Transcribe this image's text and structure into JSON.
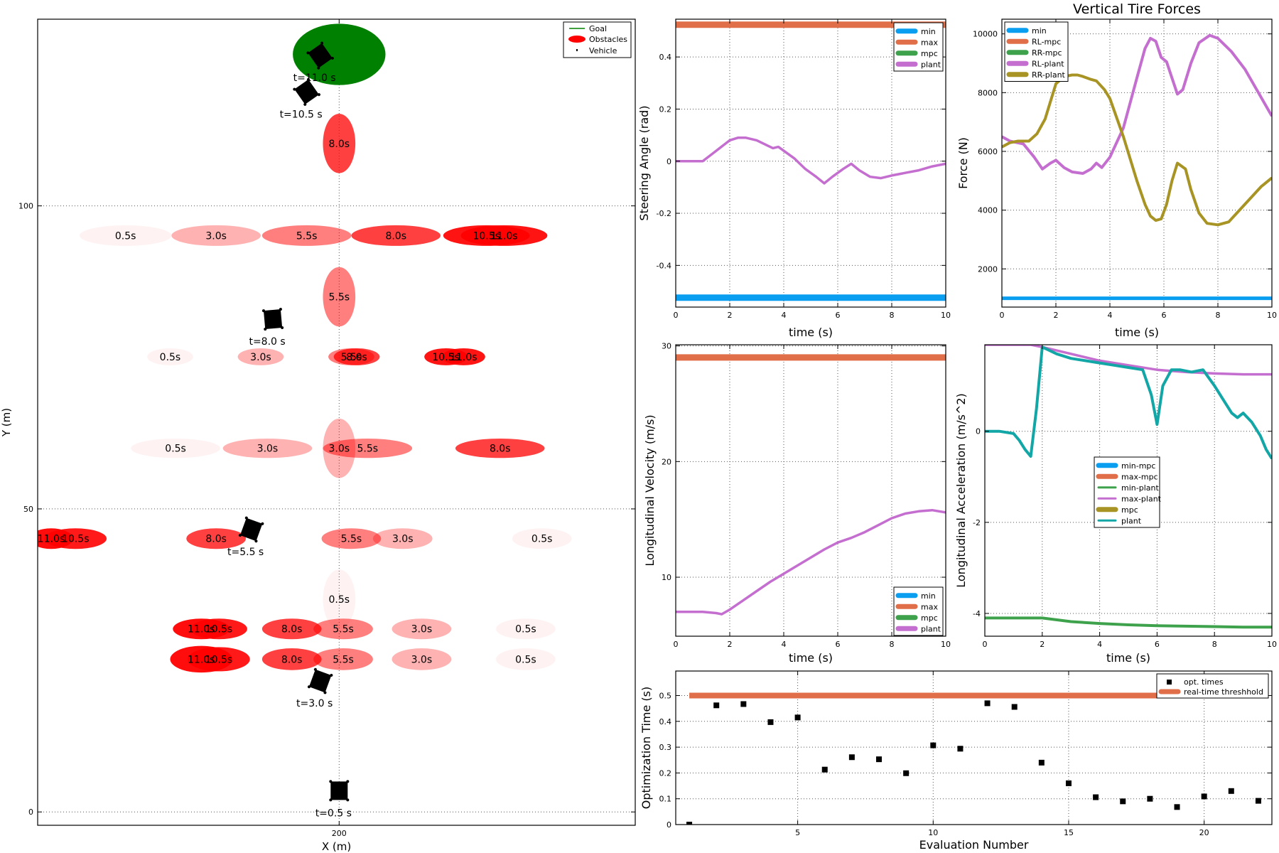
{
  "chart_data": [
    {
      "type": "scatter",
      "xlabel": "X (m)",
      "ylabel": "Y (m)",
      "xlim": [
        177.7,
        221.9
      ],
      "ylim": [
        -2.2,
        130.8
      ],
      "xticks": [
        200
      ],
      "yticks": [
        0,
        50,
        100
      ],
      "grid": true,
      "legend": {
        "placement": "top-right",
        "entries": [
          "Goal",
          "Obstacles",
          "Vehicle"
        ]
      },
      "goal": {
        "x": 200,
        "y": 125,
        "rx": 3.4,
        "ry": 5
      },
      "obstacle_ellipses": [
        {
          "label": "8.0s",
          "x": 200,
          "y": 110.3,
          "rx": 1.2,
          "ry": 4.9,
          "alpha": 0.75
        },
        {
          "label": "0.5s",
          "x": 184.2,
          "y": 95.1,
          "rx": 3.4,
          "ry": 1.7,
          "alpha": 0.05
        },
        {
          "label": "3.0s",
          "x": 190.9,
          "y": 95.1,
          "rx": 3.3,
          "ry": 1.7,
          "alpha": 0.3
        },
        {
          "label": "5.5s",
          "x": 197.6,
          "y": 95.1,
          "rx": 3.3,
          "ry": 1.7,
          "alpha": 0.5
        },
        {
          "label": "8.0s",
          "x": 204.2,
          "y": 95.1,
          "rx": 3.3,
          "ry": 1.7,
          "alpha": 0.75
        },
        {
          "label": "10.5s",
          "x": 210.9,
          "y": 95.1,
          "rx": 3.2,
          "ry": 1.7,
          "alpha": 0.92
        },
        {
          "label": "11.0s",
          "x": 212.2,
          "y": 95.1,
          "rx": 3.2,
          "ry": 1.7,
          "alpha": 0.92
        },
        {
          "label": "5.5s",
          "x": 200,
          "y": 85,
          "rx": 1.2,
          "ry": 4.9,
          "alpha": 0.5
        },
        {
          "label": "0.5s",
          "x": 187.5,
          "y": 75.1,
          "rx": 1.7,
          "ry": 1.4,
          "alpha": 0.05
        },
        {
          "label": "3.0s",
          "x": 194.2,
          "y": 75.1,
          "rx": 1.7,
          "ry": 1.4,
          "alpha": 0.3
        },
        {
          "label": "5.5s",
          "x": 200.9,
          "y": 75.1,
          "rx": 1.7,
          "ry": 1.4,
          "alpha": 0.5
        },
        {
          "label": "8.0s",
          "x": 201.3,
          "y": 75.1,
          "rx": 1.7,
          "ry": 1.4,
          "alpha": 0.75
        },
        {
          "label": "10.5s",
          "x": 207.9,
          "y": 75.1,
          "rx": 1.6,
          "ry": 1.4,
          "alpha": 0.92
        },
        {
          "label": "11.0s",
          "x": 209.2,
          "y": 75.1,
          "rx": 1.6,
          "ry": 1.4,
          "alpha": 0.92
        },
        {
          "label": "0.5s",
          "x": 187.9,
          "y": 60,
          "rx": 3.3,
          "ry": 1.6,
          "alpha": 0.05
        },
        {
          "label": "3.0s",
          "x": 194.7,
          "y": 60,
          "rx": 3.3,
          "ry": 1.6,
          "alpha": 0.3
        },
        {
          "label": "3.0s",
          "x": 200,
          "y": 60,
          "rx": 1.2,
          "ry": 4.9,
          "alpha": 0.3
        },
        {
          "label": "5.5s",
          "x": 202.1,
          "y": 60,
          "rx": 3.3,
          "ry": 1.6,
          "alpha": 0.5
        },
        {
          "label": "8.0s",
          "x": 211.9,
          "y": 60,
          "rx": 3.3,
          "ry": 1.6,
          "alpha": 0.75
        },
        {
          "label": "11.0s",
          "x": 178.7,
          "y": 45.1,
          "rx": 1.6,
          "ry": 1.7,
          "alpha": 0.95
        },
        {
          "label": "10.5s",
          "x": 180.5,
          "y": 45.1,
          "rx": 2.3,
          "ry": 1.7,
          "alpha": 0.9
        },
        {
          "label": "8.0s",
          "x": 190.9,
          "y": 45.1,
          "rx": 2.2,
          "ry": 1.7,
          "alpha": 0.75
        },
        {
          "label": "5.5s",
          "x": 200.9,
          "y": 45.1,
          "rx": 2.2,
          "ry": 1.7,
          "alpha": 0.5
        },
        {
          "label": "3.0s",
          "x": 204.7,
          "y": 45.1,
          "rx": 2.2,
          "ry": 1.7,
          "alpha": 0.3
        },
        {
          "label": "0.5s",
          "x": 215.0,
          "y": 45.1,
          "rx": 2.2,
          "ry": 1.7,
          "alpha": 0.05
        },
        {
          "label": "0.5s",
          "x": 200,
          "y": 35.1,
          "rx": 1.2,
          "ry": 4.9,
          "alpha": 0.05
        },
        {
          "label": "11.0s",
          "x": 189.8,
          "y": 30.2,
          "rx": 2.1,
          "ry": 1.7,
          "alpha": 0.95
        },
        {
          "label": "10.5s",
          "x": 191.1,
          "y": 30.2,
          "rx": 2.1,
          "ry": 1.7,
          "alpha": 0.9
        },
        {
          "label": "8.0s",
          "x": 196.5,
          "y": 30.2,
          "rx": 2.2,
          "ry": 1.7,
          "alpha": 0.75
        },
        {
          "label": "5.5s",
          "x": 200.3,
          "y": 30.2,
          "rx": 2.2,
          "ry": 1.7,
          "alpha": 0.5
        },
        {
          "label": "3.0s",
          "x": 206.1,
          "y": 30.2,
          "rx": 2.2,
          "ry": 1.7,
          "alpha": 0.3
        },
        {
          "label": "0.5s",
          "x": 213.8,
          "y": 30.2,
          "rx": 2.2,
          "ry": 1.7,
          "alpha": 0.05
        },
        {
          "label": "11.0s",
          "x": 189.8,
          "y": 25.2,
          "rx": 2.3,
          "ry": 2.2,
          "alpha": 0.95
        },
        {
          "label": "10.5s",
          "x": 191.1,
          "y": 25.2,
          "rx": 2.3,
          "ry": 2.0,
          "alpha": 0.9
        },
        {
          "label": "8.0s",
          "x": 196.5,
          "y": 25.2,
          "rx": 2.2,
          "ry": 1.8,
          "alpha": 0.75
        },
        {
          "label": "5.5s",
          "x": 200.3,
          "y": 25.2,
          "rx": 2.2,
          "ry": 1.8,
          "alpha": 0.5
        },
        {
          "label": "3.0s",
          "x": 206.1,
          "y": 25.2,
          "rx": 2.2,
          "ry": 1.8,
          "alpha": 0.3
        },
        {
          "label": "0.5s",
          "x": 213.8,
          "y": 25.2,
          "rx": 2.2,
          "ry": 1.8,
          "alpha": 0.05
        }
      ],
      "vehicle_poses": [
        {
          "label": "t=0.5 s",
          "x": 200,
          "y": 3.5,
          "heading_deg": 90
        },
        {
          "label": "t=3.0 s",
          "x": 198.6,
          "y": 21.6,
          "heading_deg": 70
        },
        {
          "label": "t=5.5 s",
          "x": 193.5,
          "y": 46.6,
          "heading_deg": 70
        },
        {
          "label": "t=8.0 s",
          "x": 195.1,
          "y": 81.3,
          "heading_deg": 95
        },
        {
          "label": "t=10.5 s",
          "x": 197.6,
          "y": 118.8,
          "heading_deg": 125
        },
        {
          "label": "t=11.0 s",
          "x": 198.6,
          "y": 124.8,
          "heading_deg": 125
        }
      ]
    },
    {
      "type": "line",
      "xlabel": "time (s)",
      "ylabel": "Steering Angle (rad)",
      "xlim": [
        0,
        10
      ],
      "ylim": [
        -0.56,
        0.545
      ],
      "xticks": [
        0,
        2,
        4,
        6,
        8,
        10
      ],
      "yticks": [
        -0.4,
        -0.2,
        0.0,
        0.2,
        0.4
      ],
      "grid": true,
      "legend": {
        "placement": "top-right"
      },
      "series": [
        {
          "name": "min",
          "x": [
            0,
            10
          ],
          "y": [
            -0.524,
            -0.524
          ]
        },
        {
          "name": "max",
          "x": [
            0,
            10
          ],
          "y": [
            0.524,
            0.524
          ]
        },
        {
          "name": "mpc",
          "x": [],
          "y": []
        },
        {
          "name": "plant",
          "x": [
            0,
            1.0,
            1.5,
            2.0,
            2.3,
            2.6,
            3.0,
            3.4,
            3.6,
            3.8,
            4.0,
            4.4,
            4.8,
            5.2,
            5.5,
            5.8,
            6.2,
            6.5,
            6.8,
            7.2,
            7.6,
            8.0,
            8.5,
            9.0,
            9.5,
            10.0
          ],
          "y": [
            0.0,
            0.0,
            0.04,
            0.08,
            0.09,
            0.09,
            0.08,
            0.06,
            0.05,
            0.055,
            0.04,
            0.01,
            -0.03,
            -0.06,
            -0.085,
            -0.06,
            -0.03,
            -0.01,
            -0.035,
            -0.06,
            -0.065,
            -0.055,
            -0.045,
            -0.035,
            -0.02,
            -0.01
          ]
        }
      ]
    },
    {
      "type": "line",
      "title": "Vertical Tire Forces",
      "xlabel": "time (s)",
      "ylabel": "Force (N)",
      "xlim": [
        0,
        10
      ],
      "ylim": [
        700,
        10500
      ],
      "xticks": [
        0,
        2,
        4,
        6,
        8,
        10
      ],
      "yticks": [
        2000,
        4000,
        6000,
        8000,
        10000
      ],
      "grid": true,
      "legend": {
        "placement": "top-left"
      },
      "series": [
        {
          "name": "min",
          "x": [
            0,
            10
          ],
          "y": [
            1000,
            1000
          ]
        },
        {
          "name": "RL-mpc",
          "x": [],
          "y": []
        },
        {
          "name": "RR-mpc",
          "x": [],
          "y": []
        },
        {
          "name": "RL-plant",
          "x": [
            0,
            0.3,
            0.8,
            1.2,
            1.5,
            1.8,
            2.0,
            2.3,
            2.6,
            3.0,
            3.3,
            3.5,
            3.7,
            4.0,
            4.5,
            5.0,
            5.3,
            5.5,
            5.7,
            5.9,
            6.1,
            6.3,
            6.5,
            6.7,
            7.0,
            7.3,
            7.7,
            8.0,
            8.5,
            9.0,
            9.5,
            10.0
          ],
          "y": [
            6500,
            6350,
            6250,
            5800,
            5400,
            5600,
            5700,
            5450,
            5300,
            5250,
            5400,
            5600,
            5450,
            5800,
            6800,
            8500,
            9500,
            9850,
            9750,
            9200,
            9050,
            8500,
            7950,
            8100,
            9000,
            9700,
            9950,
            9850,
            9400,
            8800,
            8000,
            7200
          ]
        },
        {
          "name": "RR-plant",
          "x": [
            0,
            0.3,
            0.6,
            1.0,
            1.3,
            1.6,
            1.8,
            2.0,
            2.3,
            2.6,
            2.8,
            3.0,
            3.3,
            3.5,
            3.8,
            4.0,
            4.5,
            5.0,
            5.3,
            5.5,
            5.7,
            5.9,
            6.1,
            6.3,
            6.5,
            6.8,
            7.0,
            7.3,
            7.6,
            8.0,
            8.4,
            8.8,
            9.2,
            9.6,
            10.0
          ],
          "y": [
            6150,
            6300,
            6350,
            6350,
            6600,
            7100,
            7700,
            8300,
            8550,
            8600,
            8600,
            8550,
            8450,
            8400,
            8100,
            7800,
            6500,
            5000,
            4200,
            3800,
            3650,
            3700,
            4200,
            5000,
            5600,
            5400,
            4700,
            3900,
            3550,
            3500,
            3600,
            4000,
            4400,
            4800,
            5100
          ]
        }
      ]
    },
    {
      "type": "line",
      "xlabel": "time (s)",
      "ylabel": "Longitudinal Velocity (m/s)",
      "xlim": [
        0,
        10
      ],
      "ylim": [
        4.9,
        30.1
      ],
      "xticks": [
        0,
        2,
        4,
        6,
        8,
        10
      ],
      "yticks": [
        10,
        20,
        30
      ],
      "grid": true,
      "legend": {
        "placement": "bottom-right"
      },
      "series": [
        {
          "name": "min",
          "x": [],
          "y": []
        },
        {
          "name": "max",
          "x": [
            0,
            10
          ],
          "y": [
            29.0,
            29.0
          ]
        },
        {
          "name": "mpc",
          "x": [],
          "y": []
        },
        {
          "name": "plant",
          "x": [
            0,
            1.0,
            1.5,
            1.7,
            2.0,
            2.5,
            3.0,
            3.5,
            4.0,
            4.5,
            5.0,
            5.5,
            6.0,
            6.5,
            7.0,
            7.5,
            8.0,
            8.5,
            9.0,
            9.5,
            10.0
          ],
          "y": [
            7.0,
            7.0,
            6.9,
            6.8,
            7.2,
            8.0,
            8.8,
            9.6,
            10.3,
            11.0,
            11.7,
            12.4,
            13.0,
            13.4,
            13.9,
            14.5,
            15.1,
            15.5,
            15.7,
            15.8,
            15.6
          ]
        }
      ]
    },
    {
      "type": "line",
      "xlabel": "time (s)",
      "ylabel": "Longitudinal Acceleration (m/s^2)",
      "xlim": [
        0,
        10
      ],
      "ylim": [
        -4.5,
        1.9
      ],
      "xticks": [
        0,
        2,
        4,
        6,
        8,
        10
      ],
      "yticks": [
        -4,
        -2,
        0
      ],
      "grid": true,
      "legend": {
        "placement": "center"
      },
      "series": [
        {
          "name": "min-mpc",
          "x": [],
          "y": []
        },
        {
          "name": "max-mpc",
          "x": [],
          "y": []
        },
        {
          "name": "min-plant",
          "x": [
            0,
            1.0,
            2.0,
            3.0,
            4.0,
            5.0,
            6.0,
            7.0,
            8.0,
            9.0,
            10.0
          ],
          "y": [
            -4.1,
            -4.1,
            -4.1,
            -4.18,
            -4.22,
            -4.25,
            -4.27,
            -4.28,
            -4.29,
            -4.3,
            -4.3
          ]
        },
        {
          "name": "max-plant",
          "x": [
            0,
            1.0,
            1.6,
            2.0,
            3.0,
            4.0,
            5.0,
            6.0,
            7.0,
            8.0,
            9.0,
            10.0
          ],
          "y": [
            1.9,
            1.9,
            1.9,
            1.85,
            1.7,
            1.55,
            1.45,
            1.35,
            1.3,
            1.27,
            1.25,
            1.25
          ]
        },
        {
          "name": "mpc",
          "x": [],
          "y": []
        },
        {
          "name": "plant",
          "x": [
            0,
            0.5,
            1.0,
            1.2,
            1.4,
            1.6,
            1.8,
            2.0,
            2.5,
            3.0,
            3.5,
            4.0,
            4.5,
            5.0,
            5.5,
            5.8,
            6.0,
            6.2,
            6.5,
            6.8,
            7.2,
            7.6,
            8.0,
            8.3,
            8.6,
            8.8,
            9.0,
            9.3,
            9.6,
            9.8,
            10.0
          ],
          "y": [
            0.0,
            0.0,
            -0.05,
            -0.2,
            -0.4,
            -0.55,
            0.5,
            1.85,
            1.7,
            1.6,
            1.55,
            1.5,
            1.45,
            1.4,
            1.35,
            0.8,
            0.15,
            1.0,
            1.35,
            1.35,
            1.3,
            1.35,
            1.0,
            0.7,
            0.4,
            0.3,
            0.4,
            0.2,
            -0.1,
            -0.4,
            -0.6
          ]
        }
      ]
    },
    {
      "type": "scatter",
      "xlabel": "Evaluation Number",
      "ylabel": "Optimization Time (s)",
      "xlim": [
        0.5,
        22.5
      ],
      "ylim": [
        0,
        0.595
      ],
      "xticks": [
        5,
        10,
        15,
        20
      ],
      "yticks": [
        0.0,
        0.1,
        0.2,
        0.3,
        0.4,
        0.5
      ],
      "grid": true,
      "legend": {
        "placement": "top-right"
      },
      "series": [
        {
          "name": "opt. times",
          "x": [
            1,
            2,
            3,
            4,
            5,
            6,
            7,
            8,
            9,
            10,
            11,
            12,
            13,
            14,
            15,
            16,
            17,
            18,
            19,
            20,
            21,
            22
          ],
          "y": [
            0.0,
            0.462,
            0.467,
            0.397,
            0.415,
            0.213,
            0.261,
            0.253,
            0.199,
            0.307,
            0.294,
            0.47,
            0.456,
            0.24,
            0.16,
            0.106,
            0.09,
            0.1,
            0.068,
            0.109,
            0.13,
            0.092
          ]
        },
        {
          "name": "real-time threshhold",
          "x": [
            1,
            22
          ],
          "y": [
            0.5,
            0.5
          ]
        }
      ]
    }
  ],
  "colors": {
    "min": "#0a9ef0",
    "max": "#e06e48",
    "mpc_green": "#3ea24c",
    "plant_purple": "#c46fd0",
    "olive": "#a79424",
    "teal": "#12a6a6",
    "goal_green": "#008000",
    "obstacle_red": "#ff0000",
    "black": "#000000",
    "grid": "#555555"
  }
}
